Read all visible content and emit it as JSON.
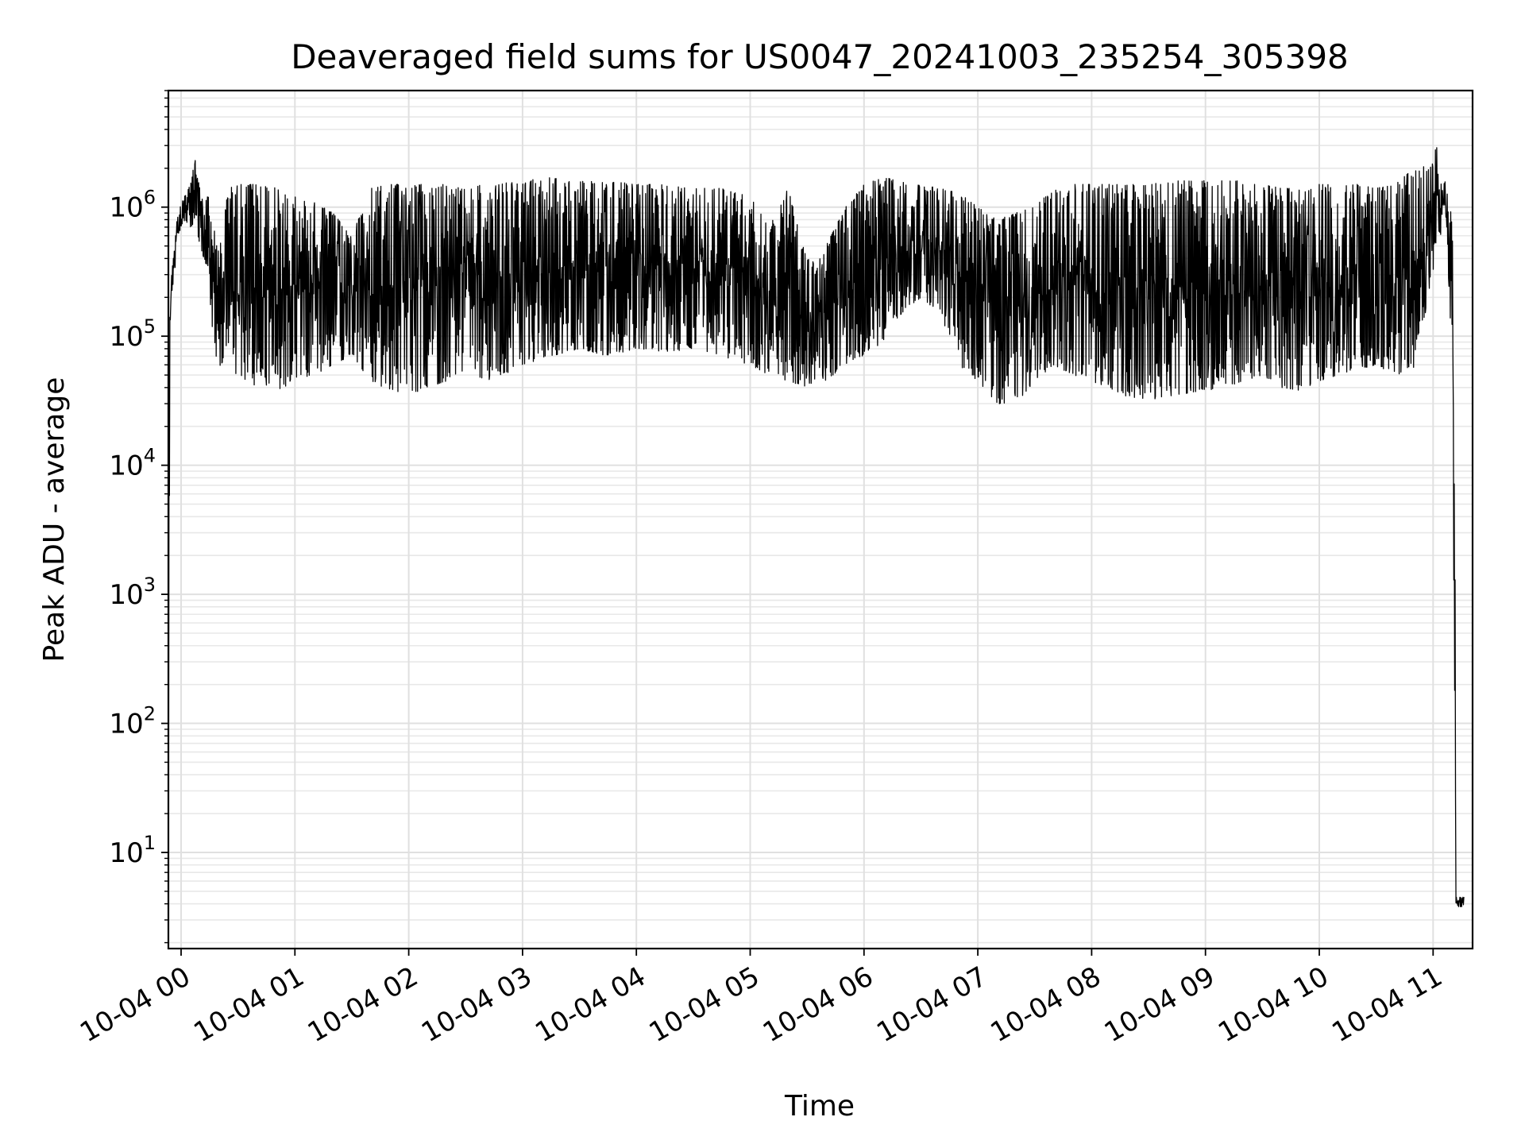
{
  "chart_data": {
    "type": "line",
    "title": "Deaveraged field sums for US0047_20241003_235254_305398",
    "xlabel": "Time",
    "ylabel": "Peak ADU - average",
    "yscale": "log",
    "ylim": [
      1.8,
      8000000
    ],
    "xlim": [
      "10-03 23:52:54",
      "10-04 11:17:00"
    ],
    "grid": "on (major and minor)",
    "line_color": "#000000",
    "x_ticks": [
      "10-04 00",
      "10-04 01",
      "10-04 02",
      "10-04 03",
      "10-04 04",
      "10-04 05",
      "10-04 06",
      "10-04 07",
      "10-04 08",
      "10-04 09",
      "10-04 10",
      "10-04 11"
    ],
    "y_ticks": [
      {
        "base": "10",
        "exp": "1"
      },
      {
        "base": "10",
        "exp": "2"
      },
      {
        "base": "10",
        "exp": "3"
      },
      {
        "base": "10",
        "exp": "4"
      },
      {
        "base": "10",
        "exp": "5"
      },
      {
        "base": "10",
        "exp": "6"
      }
    ],
    "series": [
      {
        "x": [
          "10-03 23:53:10",
          "10-03 23:53:30",
          "10-03 23:54:00",
          "10-03 23:55:00",
          "10-03 23:56:30",
          "10-03 23:58:00",
          "10-04 00:00:00",
          "10-04 00:02:00",
          "10-04 00:05:00",
          "10-04 00:08:00",
          "10-04 00:10:00",
          "10-04 00:12:00",
          "10-04 00:15:00",
          "10-04 00:16:00",
          "10-04 00:18:00",
          "10-04 00:20:00",
          "10-04 00:25:00",
          "10-04 00:30:00",
          "10-04 00:35:00",
          "10-04 00:40:00",
          "10-04 00:45:00",
          "10-04 00:50:00",
          "10-04 00:55:00",
          "10-04 01:00:00",
          "10-04 01:10:00",
          "10-04 01:20:00",
          "10-04 01:30:00",
          "10-04 01:40:00",
          "10-04 01:50:00",
          "10-04 02:00:00",
          "10-04 02:10:00",
          "10-04 02:20:00",
          "10-04 02:30:00",
          "10-04 02:40:00",
          "10-04 02:50:00",
          "10-04 03:00:00",
          "10-04 03:15:00",
          "10-04 03:30:00",
          "10-04 03:45:00",
          "10-04 04:00:00",
          "10-04 04:15:00",
          "10-04 04:30:00",
          "10-04 04:45:00",
          "10-04 05:00:00",
          "10-04 05:10:00",
          "10-04 05:20:00",
          "10-04 05:30:00",
          "10-04 05:40:00",
          "10-04 05:50:00",
          "10-04 06:00:00",
          "10-04 06:10:00",
          "10-04 06:20:00",
          "10-04 06:30:00",
          "10-04 06:40:00",
          "10-04 06:50:00",
          "10-04 07:00:00",
          "10-04 07:10:00",
          "10-04 07:20:00",
          "10-04 07:30:00",
          "10-04 07:40:00",
          "10-04 07:50:00",
          "10-04 08:00:00",
          "10-04 08:15:00",
          "10-04 08:30:00",
          "10-04 08:45:00",
          "10-04 09:00:00",
          "10-04 09:10:00",
          "10-04 09:20:00",
          "10-04 09:30:00",
          "10-04 09:40:00",
          "10-04 09:50:00",
          "10-04 10:00:00",
          "10-04 10:10:00",
          "10-04 10:20:00",
          "10-04 10:30:00",
          "10-04 10:40:00",
          "10-04 10:50:00",
          "10-04 11:00:00",
          "10-04 11:01:00",
          "10-04 11:04:00",
          "10-04 11:07:00",
          "10-04 11:10:00",
          "10-04 11:11:30",
          "10-04 11:12:00",
          "10-04 11:14:00",
          "10-04 11:16:30"
        ],
        "low": [
          1.8,
          3.8,
          100000,
          150000,
          300000,
          500000,
          700000,
          800000,
          700000,
          600000,
          500000,
          400000,
          300000,
          100000,
          70000,
          60000,
          55000,
          50000,
          45000,
          40000,
          40000,
          38000,
          40000,
          45000,
          50000,
          60000,
          70000,
          45000,
          38000,
          35000,
          40000,
          45000,
          55000,
          45000,
          50000,
          60000,
          70000,
          80000,
          70000,
          80000,
          75000,
          80000,
          70000,
          60000,
          50000,
          45000,
          40000,
          45000,
          60000,
          70000,
          90000,
          150000,
          200000,
          150000,
          60000,
          45000,
          30000,
          30000,
          45000,
          60000,
          50000,
          45000,
          35000,
          32000,
          35000,
          38000,
          40000,
          45000,
          50000,
          40000,
          38000,
          45000,
          50000,
          55000,
          60000,
          50000,
          55000,
          300000,
          500000,
          600000,
          800000,
          50000,
          100,
          3.8,
          3.8,
          3.8
        ],
        "high": [
          1.8,
          120000,
          150000,
          300000,
          500000,
          900000,
          1100000,
          1300000,
          1500000,
          2700000,
          1300000,
          1200000,
          1300000,
          900000,
          600000,
          500000,
          1400000,
          1500000,
          1500000,
          1500000,
          1500000,
          1400000,
          1300000,
          1200000,
          1100000,
          900000,
          600000,
          1400000,
          1500000,
          1500000,
          1500000,
          1500000,
          1400000,
          1500000,
          1600000,
          1600000,
          1700000,
          1600000,
          1600000,
          1500000,
          1500000,
          1400000,
          1400000,
          1200000,
          700000,
          1400000,
          400000,
          500000,
          1000000,
          1500000,
          1700000,
          1600000,
          1500000,
          1400000,
          1300000,
          1000000,
          800000,
          900000,
          1000000,
          1400000,
          1500000,
          1500000,
          1500000,
          1500000,
          1600000,
          1600000,
          1600000,
          1600000,
          1500000,
          1400000,
          1400000,
          1500000,
          1500000,
          1500000,
          1400000,
          1500000,
          2000000,
          2200000,
          4300000,
          1600000,
          1600000,
          800000,
          150000,
          4.5,
          4.5,
          4.5
        ]
      }
    ]
  }
}
